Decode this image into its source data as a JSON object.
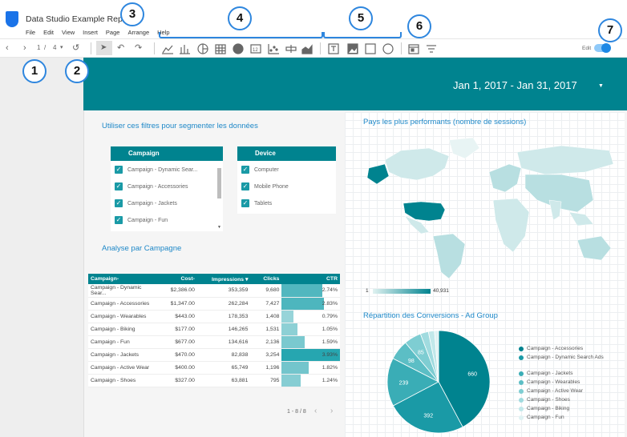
{
  "app": {
    "title": "Data Studio Example Report"
  },
  "menu": [
    "File",
    "Edit",
    "View",
    "Insert",
    "Page",
    "Arrange",
    "Help"
  ],
  "toolbar": {
    "page_current": "1",
    "page_sep": "/",
    "page_total": "4",
    "edit_label": "Edit",
    "icons": [
      "prev-page-icon",
      "next-page-icon",
      "page-dropdown-icon",
      "history-icon",
      "select-cursor-icon",
      "undo-icon",
      "redo-icon",
      "time-series-chart-icon",
      "bar-chart-icon",
      "pie-chart-icon",
      "table-icon",
      "geo-map-icon",
      "scorecard-icon",
      "scatter-chart-icon",
      "bullet-chart-icon",
      "area-chart-icon",
      "text-icon",
      "image-icon",
      "rectangle-icon",
      "circle-icon",
      "date-range-icon",
      "filter-control-icon"
    ]
  },
  "callouts": [
    "1",
    "2",
    "3",
    "4",
    "5",
    "6",
    "7"
  ],
  "report": {
    "date_range": "Jan 1, 2017 - Jan 31, 2017",
    "filter_title": "Utiliser ces filtres pour segmenter les données",
    "campaign_filter": {
      "header": "Campaign",
      "items": [
        "Campaign - Dynamic Sear...",
        "Campaign - Accessories",
        "Campaign - Jackets",
        "Campaign - Fun"
      ]
    },
    "device_filter": {
      "header": "Device",
      "items": [
        "Computer",
        "Mobile Phone",
        "Tablets"
      ]
    },
    "table_title": "Analyse par Campagne",
    "table": {
      "headers": [
        "Campaign-",
        "Cost-",
        "Impressions ▾",
        "Clicks",
        "CTR"
      ],
      "rows": [
        [
          "Campaign - Dynamic Sear...",
          "$2,386.00",
          "353,359",
          "9,680",
          "2.74%"
        ],
        [
          "Campaign - Accessories",
          "$1,347.00",
          "262,284",
          "7,427",
          "2.83%"
        ],
        [
          "Campaign - Wearables",
          "$443.00",
          "178,353",
          "1,408",
          "0.79%"
        ],
        [
          "Campaign - Biking",
          "$177.00",
          "146,265",
          "1,531",
          "1.05%"
        ],
        [
          "Campaign - Fun",
          "$677.00",
          "134,616",
          "2,136",
          "1.59%"
        ],
        [
          "Campaign - Jackets",
          "$470.00",
          "82,838",
          "3,254",
          "3.93%"
        ],
        [
          "Campaign - Active Wear",
          "$400.00",
          "65,749",
          "1,196",
          "1.82%"
        ],
        [
          "Campaign - Shoes",
          "$327.00",
          "63,881",
          "795",
          "1.24%"
        ]
      ],
      "ctr_fraction": [
        0.7,
        0.72,
        0.2,
        0.27,
        0.4,
        1.0,
        0.46,
        0.32
      ],
      "pager": "1 - 8 / 8",
      "prev": "‹",
      "next": "›"
    },
    "map_title": "Pays les plus performants (nombre de sessions)",
    "map_legend_min": "1",
    "map_legend_max": "40,931",
    "pie_title": "Répartition des Conversions - Ad Group"
  },
  "chart_data": {
    "type": "pie",
    "title": "Répartition des Conversions - Ad Group",
    "series": [
      {
        "values": [
          660,
          392,
          239,
          98,
          85,
          40,
          30,
          20
        ]
      }
    ],
    "categories": [
      "Campaign - Accessories",
      "Campaign - Dynamic Search Ads",
      "Campaign - Jackets",
      "Campaign - Wearables",
      "Campaign - Active Wear",
      "Campaign - Shoes",
      "Campaign - Biking",
      "Campaign - Fun"
    ],
    "labels_shown": [
      "660",
      "392",
      "239",
      "98",
      "85"
    ],
    "colors": [
      "#00838f",
      "#1a9aa6",
      "#3aadb6",
      "#5cbec5",
      "#7ecdd2",
      "#a0dbdf",
      "#c1e8ea",
      "#dff2f3"
    ],
    "legend": "right"
  }
}
